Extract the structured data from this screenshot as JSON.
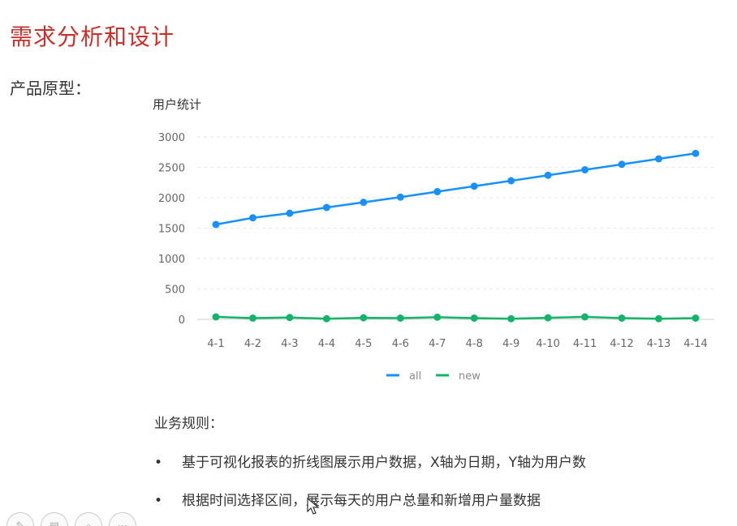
{
  "page": {
    "title": "需求分析和设计",
    "prototype_label": "产品原型："
  },
  "rules": {
    "title": "业务规则：",
    "items": [
      "基于可视化报表的折线图展示用户数据，X轴为日期，Y轴为用户数",
      "根据时间选择区间，展示每天的用户总量和新增用户量数据"
    ],
    "bullet": "•"
  },
  "toolbar": {
    "icons": [
      "pen-icon",
      "slides-icon",
      "zoom-icon",
      "more-icon"
    ]
  },
  "chart_data": {
    "type": "line",
    "title": "用户统计",
    "categories": [
      "4-1",
      "4-2",
      "4-3",
      "4-4",
      "4-5",
      "4-6",
      "4-7",
      "4-8",
      "4-9",
      "4-10",
      "4-11",
      "4-12",
      "4-13",
      "4-14"
    ],
    "series": [
      {
        "name": "all",
        "color": "#1890ff",
        "values": [
          1560,
          1670,
          1745,
          1840,
          1925,
          2010,
          2100,
          2190,
          2280,
          2370,
          2460,
          2550,
          2640,
          2730
        ]
      },
      {
        "name": "new",
        "color": "#13b46a",
        "values": [
          40,
          20,
          30,
          10,
          25,
          20,
          35,
          20,
          10,
          25,
          40,
          20,
          10,
          20
        ]
      }
    ],
    "yticks": [
      0,
      500,
      1000,
      1500,
      2000,
      2500,
      3000
    ],
    "ylim": [
      0,
      3000
    ],
    "grid": true,
    "legend_position": "bottom-center"
  }
}
